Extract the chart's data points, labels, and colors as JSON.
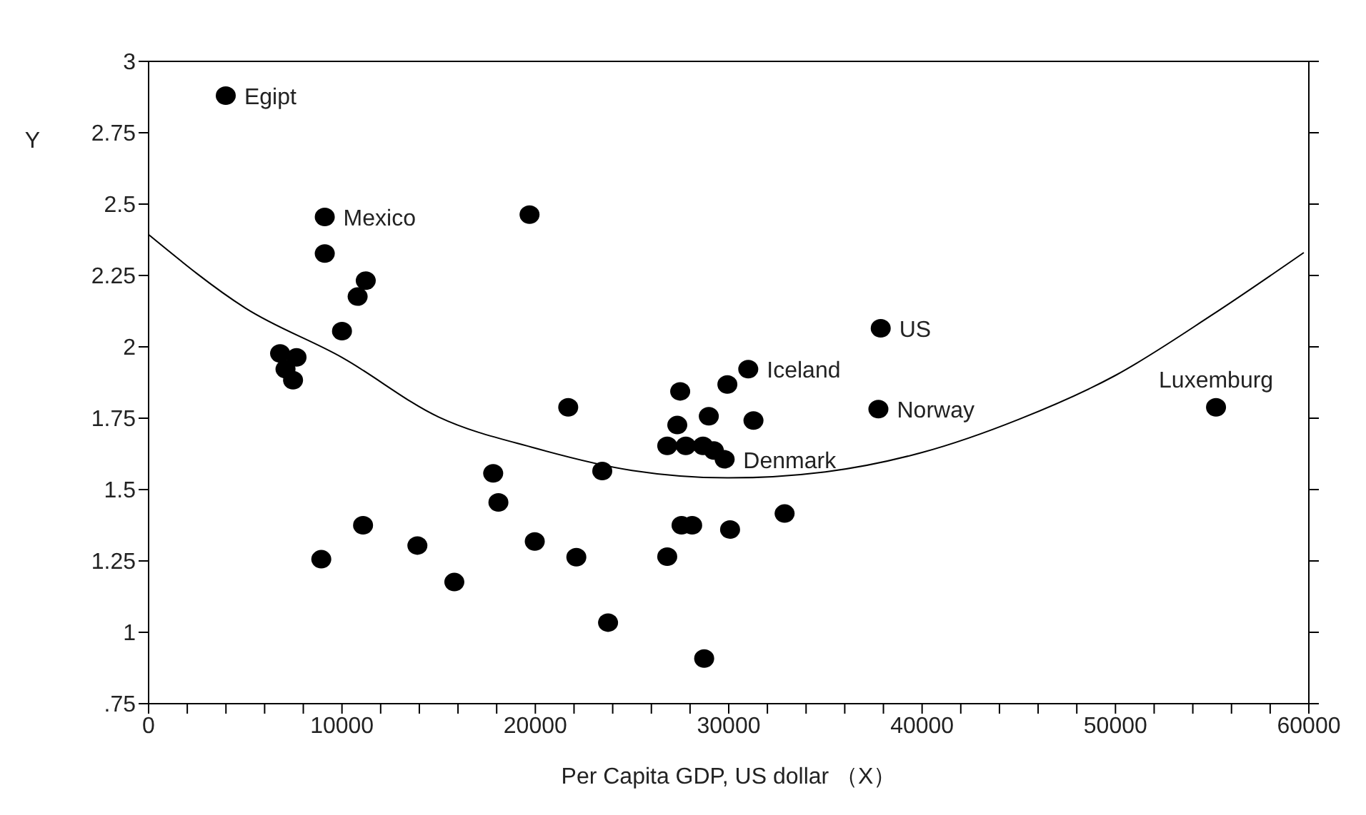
{
  "chart_data": {
    "type": "scatter",
    "xlabel": "Per Capita GDP, US dollar （X）",
    "ylabel": "Y",
    "xlim": [
      0,
      60000
    ],
    "ylim": [
      0.75,
      3
    ],
    "xticks": [
      0,
      {
        "value": 2000,
        "label": null
      },
      {
        "value": 4000,
        "label": null
      },
      {
        "value": 6000,
        "label": null
      },
      {
        "value": 8000,
        "label": null
      },
      10000,
      {
        "value": 12000,
        "label": null
      },
      {
        "value": 14000,
        "label": null
      },
      {
        "value": 16000,
        "label": null
      },
      {
        "value": 18000,
        "label": null
      },
      20000,
      {
        "value": 22000,
        "label": null
      },
      {
        "value": 24000,
        "label": null
      },
      {
        "value": 26000,
        "label": null
      },
      {
        "value": 28000,
        "label": null
      },
      30000,
      {
        "value": 32000,
        "label": null
      },
      {
        "value": 34000,
        "label": null
      },
      {
        "value": 36000,
        "label": null
      },
      {
        "value": 38000,
        "label": null
      },
      40000,
      {
        "value": 42000,
        "label": null
      },
      {
        "value": 44000,
        "label": null
      },
      {
        "value": 46000,
        "label": null
      },
      {
        "value": 48000,
        "label": null
      },
      50000,
      {
        "value": 52000,
        "label": null
      },
      {
        "value": 54000,
        "label": null
      },
      {
        "value": 56000,
        "label": null
      },
      {
        "value": 58000,
        "label": null
      },
      60000
    ],
    "yticks": [
      {
        "value": 0.75,
        "label": ".75"
      },
      1,
      1.25,
      1.5,
      1.75,
      2,
      2.25,
      2.5,
      2.75,
      3
    ],
    "grid": false,
    "legend": false,
    "series": [
      {
        "type": "scatter",
        "color": "#000000",
        "marker": "circle",
        "x": [
          3990,
          9110,
          9110,
          11230,
          10810,
          10000,
          6800,
          7650,
          7080,
          7470,
          19700,
          21700,
          8930,
          11090,
          13900,
          15810,
          17820,
          18090,
          19970,
          22120,
          23460,
          23760,
          26820,
          37860,
          31010,
          29930,
          27490,
          37740,
          27340,
          28970,
          31280,
          26820,
          27780,
          28670,
          29230,
          29790,
          27560,
          28110,
          30070,
          32890,
          28730,
          55200
        ],
        "values": [
          2.88,
          2.455,
          2.327,
          2.232,
          2.176,
          2.055,
          1.977,
          1.963,
          1.922,
          1.883,
          2.463,
          1.788,
          1.256,
          1.375,
          1.304,
          1.176,
          1.557,
          1.455,
          1.318,
          1.263,
          1.565,
          1.034,
          1.265,
          2.065,
          1.922,
          1.868,
          1.844,
          1.782,
          1.726,
          1.757,
          1.742,
          1.653,
          1.653,
          1.653,
          1.637,
          1.606,
          1.375,
          1.375,
          1.36,
          1.416,
          0.908,
          1.788
        ]
      },
      {
        "type": "line",
        "color": "#000000",
        "marker": "none",
        "x": [
          0,
          5000,
          10000,
          15000,
          20000,
          25000,
          30000,
          35000,
          40000,
          45000,
          50000,
          55000,
          59740
        ],
        "values": [
          2.393,
          2.136,
          1.963,
          1.754,
          1.645,
          1.567,
          1.541,
          1.562,
          1.63,
          1.746,
          1.9,
          2.112,
          2.33
        ]
      }
    ],
    "annotations": [
      {
        "text": "Egipt",
        "x": 3990,
        "y": 2.88
      },
      {
        "text": "Mexico",
        "x": 9110,
        "y": 2.455
      },
      {
        "text": "US",
        "x": 37860,
        "y": 2.065
      },
      {
        "text": "Iceland",
        "x": 31010,
        "y": 1.922
      },
      {
        "text": "Norway",
        "x": 37740,
        "y": 1.782
      },
      {
        "text": "Denmark",
        "x": 29790,
        "y": 1.606
      },
      {
        "text": "Luxemburg",
        "x": 55200,
        "y": 1.788
      }
    ]
  }
}
